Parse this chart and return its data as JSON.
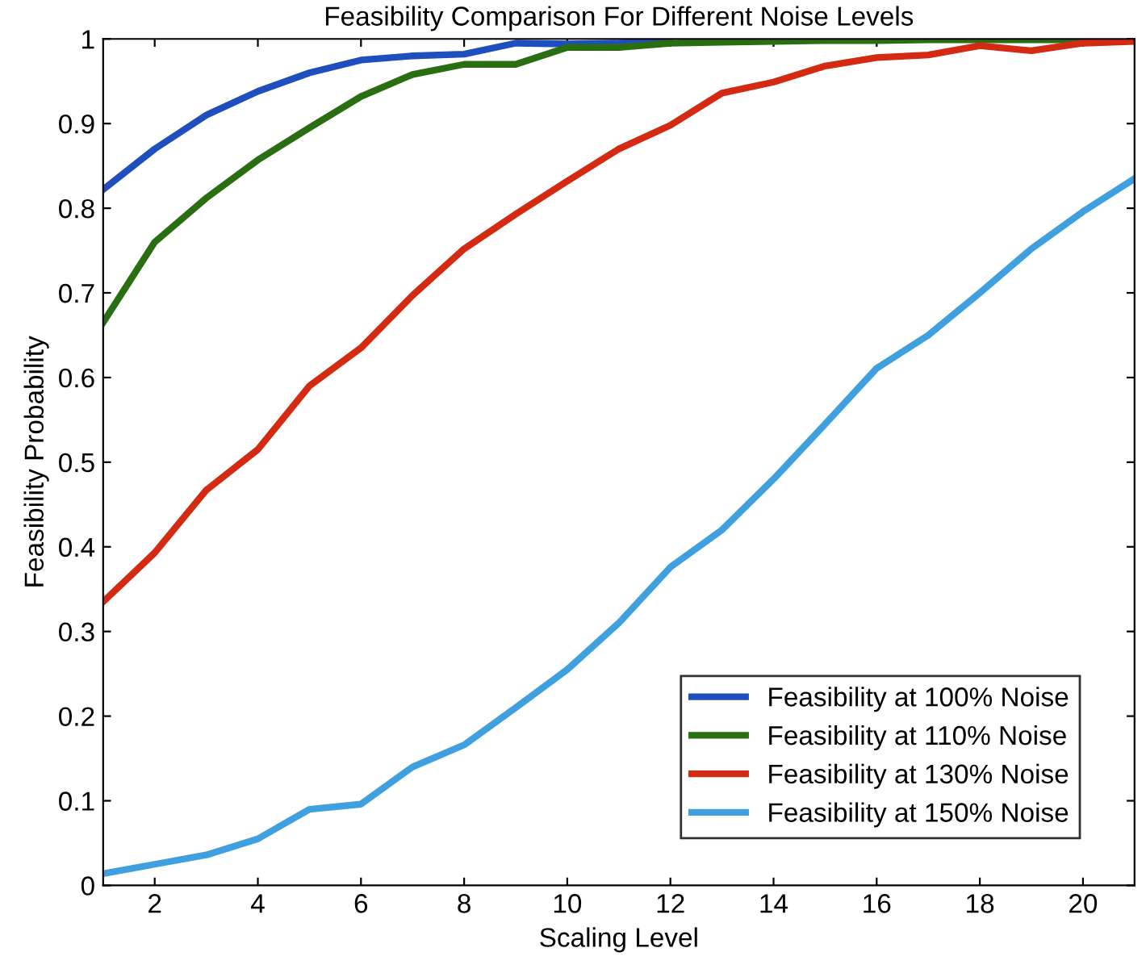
{
  "chart_data": {
    "type": "line",
    "title": "Feasibility Comparison For Different Noise Levels",
    "xlabel": "Scaling Level",
    "ylabel": "Feasibility Probability",
    "x": [
      1,
      2,
      3,
      4,
      5,
      6,
      7,
      8,
      9,
      10,
      11,
      12,
      13,
      14,
      15,
      16,
      17,
      18,
      19,
      20,
      21
    ],
    "series": [
      {
        "name": "Feasibility at 100% Noise",
        "color": "#1f4fbf",
        "values": [
          0.822,
          0.87,
          0.91,
          0.938,
          0.96,
          0.975,
          0.98,
          0.982,
          0.995,
          0.994,
          0.995,
          0.997,
          null,
          null,
          null,
          null,
          null,
          null,
          null,
          null,
          null
        ]
      },
      {
        "name": "Feasibility at 110% Noise",
        "color": "#2a6e12",
        "values": [
          0.665,
          0.76,
          0.812,
          0.857,
          0.895,
          0.932,
          0.958,
          0.97,
          0.97,
          0.99,
          0.99,
          0.995,
          0.996,
          0.997,
          0.998,
          0.998,
          0.999,
          0.999,
          0.999,
          0.999,
          0.999
        ]
      },
      {
        "name": "Feasibility at 130% Noise",
        "color": "#d42a12",
        "values": [
          0.335,
          0.393,
          0.467,
          0.515,
          0.59,
          0.635,
          0.697,
          0.752,
          0.793,
          0.832,
          0.87,
          0.898,
          0.936,
          0.949,
          0.968,
          0.978,
          0.981,
          0.992,
          0.986,
          0.995,
          0.997
        ]
      },
      {
        "name": "Feasibility at 150% Noise",
        "color": "#3fa0e0",
        "values": [
          0.014,
          0.025,
          0.036,
          0.055,
          0.09,
          0.096,
          0.14,
          0.166,
          0.21,
          0.255,
          0.31,
          0.376,
          0.42,
          0.48,
          0.545,
          0.611,
          0.65,
          0.7,
          0.752,
          0.796,
          0.835
        ]
      }
    ],
    "xlim": [
      1,
      21
    ],
    "ylim": [
      0,
      1
    ],
    "xticks": [
      2,
      4,
      6,
      8,
      10,
      12,
      14,
      16,
      18,
      20
    ],
    "yticks": [
      0,
      0.1,
      0.2,
      0.3,
      0.4,
      0.5,
      0.6,
      0.7,
      0.8,
      0.9,
      1
    ],
    "grid": false,
    "legend": "bottom right",
    "marker": "none",
    "line_style": "solid"
  }
}
